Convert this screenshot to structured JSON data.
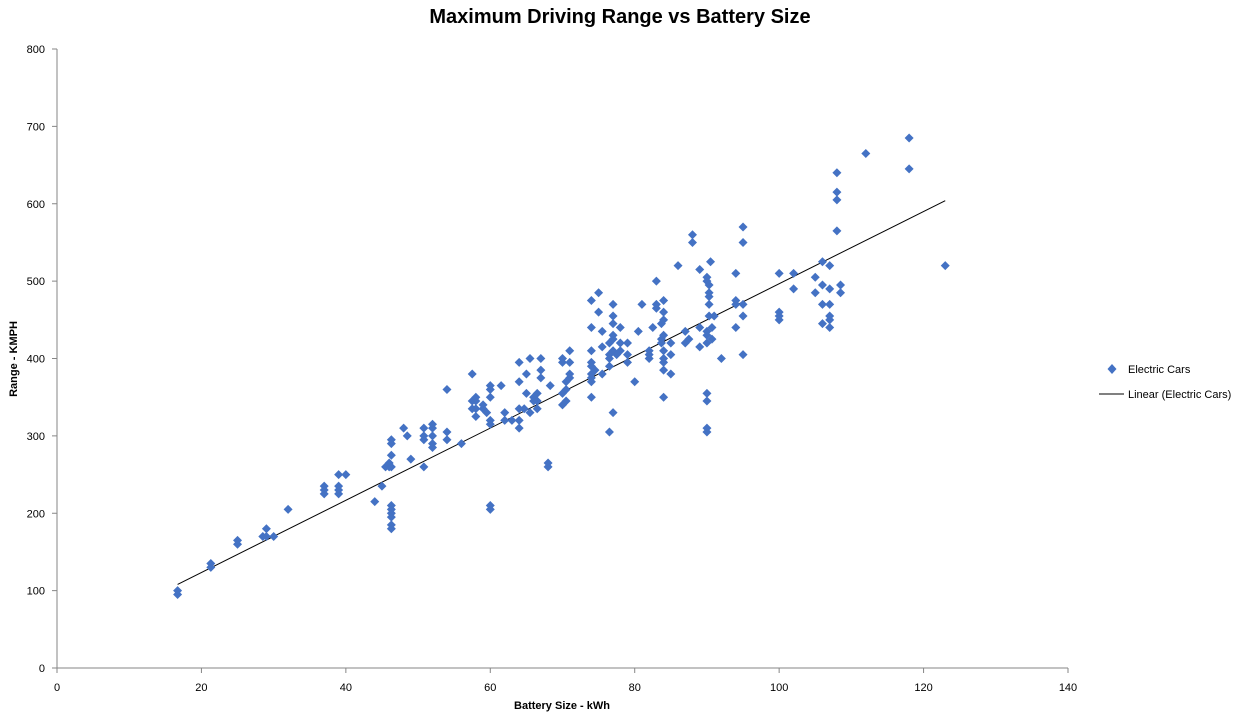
{
  "chart_data": {
    "type": "scatter",
    "title": "Maximum Driving Range vs Battery Size",
    "xlabel": "Battery Size - kWh",
    "ylabel": "Range - KMPH",
    "xlim": [
      0,
      140
    ],
    "ylim": [
      0,
      800
    ],
    "xticks": [
      0,
      20,
      40,
      60,
      80,
      100,
      120,
      140
    ],
    "yticks": [
      0,
      100,
      200,
      300,
      400,
      500,
      600,
      700,
      800
    ],
    "grid": false,
    "legend_position": "right",
    "series": [
      {
        "name": "Electric Cars",
        "marker": "diamond",
        "color": "#4472C4",
        "points": [
          [
            16.7,
            95
          ],
          [
            16.7,
            100
          ],
          [
            21.3,
            130
          ],
          [
            21.3,
            135
          ],
          [
            25,
            160
          ],
          [
            25,
            165
          ],
          [
            28.5,
            170
          ],
          [
            29,
            170
          ],
          [
            29,
            180
          ],
          [
            30,
            170
          ],
          [
            32,
            205
          ],
          [
            37,
            225
          ],
          [
            37,
            230
          ],
          [
            37,
            235
          ],
          [
            39,
            225
          ],
          [
            39,
            230
          ],
          [
            39,
            235
          ],
          [
            39,
            250
          ],
          [
            40,
            250
          ],
          [
            44,
            215
          ],
          [
            45,
            235
          ],
          [
            45.5,
            260
          ],
          [
            46,
            260
          ],
          [
            46,
            265
          ],
          [
            46.3,
            180
          ],
          [
            46.3,
            185
          ],
          [
            46.3,
            195
          ],
          [
            46.3,
            200
          ],
          [
            46.3,
            205
          ],
          [
            46.3,
            210
          ],
          [
            46.3,
            260
          ],
          [
            46.3,
            275
          ],
          [
            46.3,
            290
          ],
          [
            46.3,
            295
          ],
          [
            48,
            310
          ],
          [
            48.5,
            300
          ],
          [
            49,
            270
          ],
          [
            50.8,
            260
          ],
          [
            50.8,
            295
          ],
          [
            50.8,
            300
          ],
          [
            50.8,
            310
          ],
          [
            52,
            285
          ],
          [
            52,
            290
          ],
          [
            52,
            300
          ],
          [
            52,
            310
          ],
          [
            52,
            315
          ],
          [
            54,
            295
          ],
          [
            54,
            305
          ],
          [
            54,
            360
          ],
          [
            56,
            290
          ],
          [
            57.5,
            335
          ],
          [
            57.5,
            345
          ],
          [
            57.5,
            380
          ],
          [
            58,
            335
          ],
          [
            58,
            345
          ],
          [
            58,
            350
          ],
          [
            58,
            325
          ],
          [
            59,
            335
          ],
          [
            59,
            340
          ],
          [
            59.5,
            330
          ],
          [
            60,
            205
          ],
          [
            60,
            210
          ],
          [
            60,
            315
          ],
          [
            60,
            320
          ],
          [
            60,
            350
          ],
          [
            60,
            360
          ],
          [
            60,
            365
          ],
          [
            61.5,
            365
          ],
          [
            62,
            320
          ],
          [
            62,
            330
          ],
          [
            63,
            320
          ],
          [
            64,
            310
          ],
          [
            64,
            320
          ],
          [
            64,
            335
          ],
          [
            64,
            370
          ],
          [
            64,
            395
          ],
          [
            64.7,
            335
          ],
          [
            65,
            355
          ],
          [
            65,
            380
          ],
          [
            65.5,
            330
          ],
          [
            65.5,
            400
          ],
          [
            66,
            345
          ],
          [
            66,
            350
          ],
          [
            66.5,
            335
          ],
          [
            66.5,
            345
          ],
          [
            66.5,
            355
          ],
          [
            67,
            375
          ],
          [
            67,
            385
          ],
          [
            67,
            400
          ],
          [
            68,
            260
          ],
          [
            68,
            265
          ],
          [
            68.3,
            365
          ],
          [
            70,
            340
          ],
          [
            70,
            355
          ],
          [
            70,
            395
          ],
          [
            70,
            400
          ],
          [
            70.5,
            345
          ],
          [
            70.5,
            360
          ],
          [
            70.5,
            370
          ],
          [
            71,
            375
          ],
          [
            71,
            380
          ],
          [
            71,
            395
          ],
          [
            71,
            410
          ],
          [
            74,
            370
          ],
          [
            74,
            375
          ],
          [
            74,
            380
          ],
          [
            74,
            390
          ],
          [
            74,
            395
          ],
          [
            74,
            410
          ],
          [
            74,
            350
          ],
          [
            74,
            440
          ],
          [
            74,
            475
          ],
          [
            74.5,
            385
          ],
          [
            75,
            460
          ],
          [
            75,
            485
          ],
          [
            75.5,
            380
          ],
          [
            75.5,
            415
          ],
          [
            75.5,
            435
          ],
          [
            76.5,
            305
          ],
          [
            76.5,
            390
          ],
          [
            76.5,
            400
          ],
          [
            76.5,
            405
          ],
          [
            76.5,
            420
          ],
          [
            77,
            330
          ],
          [
            77,
            410
          ],
          [
            77,
            425
          ],
          [
            77,
            430
          ],
          [
            77,
            445
          ],
          [
            77,
            455
          ],
          [
            77,
            470
          ],
          [
            77.5,
            405
          ],
          [
            78,
            410
          ],
          [
            78,
            420
          ],
          [
            78,
            440
          ],
          [
            79,
            395
          ],
          [
            79,
            405
          ],
          [
            79,
            420
          ],
          [
            80,
            370
          ],
          [
            80.5,
            435
          ],
          [
            81,
            470
          ],
          [
            82,
            400
          ],
          [
            82,
            405
          ],
          [
            82,
            410
          ],
          [
            82.5,
            440
          ],
          [
            83,
            465
          ],
          [
            83,
            470
          ],
          [
            83,
            500
          ],
          [
            83.7,
            420
          ],
          [
            83.7,
            425
          ],
          [
            83.7,
            445
          ],
          [
            84,
            350
          ],
          [
            84,
            385
          ],
          [
            84,
            395
          ],
          [
            84,
            400
          ],
          [
            84,
            410
          ],
          [
            84,
            430
          ],
          [
            84,
            450
          ],
          [
            84,
            460
          ],
          [
            84,
            475
          ],
          [
            85,
            380
          ],
          [
            85,
            405
          ],
          [
            85,
            420
          ],
          [
            86,
            520
          ],
          [
            87,
            420
          ],
          [
            87,
            435
          ],
          [
            87.5,
            425
          ],
          [
            88,
            550
          ],
          [
            88,
            560
          ],
          [
            89,
            415
          ],
          [
            89,
            440
          ],
          [
            89,
            515
          ],
          [
            90,
            305
          ],
          [
            90,
            310
          ],
          [
            90,
            345
          ],
          [
            90,
            355
          ],
          [
            90,
            420
          ],
          [
            90,
            430
          ],
          [
            90,
            435
          ],
          [
            90,
            500
          ],
          [
            90,
            505
          ],
          [
            90.3,
            455
          ],
          [
            90.3,
            470
          ],
          [
            90.3,
            480
          ],
          [
            90.3,
            485
          ],
          [
            90.3,
            495
          ],
          [
            90.5,
            525
          ],
          [
            90.7,
            425
          ],
          [
            90.7,
            440
          ],
          [
            91,
            455
          ],
          [
            92,
            400
          ],
          [
            94,
            440
          ],
          [
            94,
            470
          ],
          [
            94,
            475
          ],
          [
            94,
            510
          ],
          [
            95,
            405
          ],
          [
            95,
            455
          ],
          [
            95,
            470
          ],
          [
            95,
            550
          ],
          [
            95,
            570
          ],
          [
            100,
            450
          ],
          [
            100,
            455
          ],
          [
            100,
            460
          ],
          [
            100,
            510
          ],
          [
            102,
            490
          ],
          [
            102,
            510
          ],
          [
            105,
            485
          ],
          [
            105,
            505
          ],
          [
            106,
            445
          ],
          [
            106,
            470
          ],
          [
            106,
            495
          ],
          [
            106,
            525
          ],
          [
            107,
            440
          ],
          [
            107,
            450
          ],
          [
            107,
            455
          ],
          [
            107,
            470
          ],
          [
            107,
            490
          ],
          [
            107,
            520
          ],
          [
            108,
            565
          ],
          [
            108,
            605
          ],
          [
            108,
            615
          ],
          [
            108,
            640
          ],
          [
            108.5,
            485
          ],
          [
            108.5,
            495
          ],
          [
            112,
            665
          ],
          [
            118,
            645
          ],
          [
            118,
            685
          ],
          [
            123,
            520
          ]
        ]
      }
    ],
    "trendline": {
      "name": "Linear (Electric Cars)",
      "type": "linear",
      "x_range": [
        16.7,
        123
      ],
      "y_values": [
        108,
        604
      ],
      "color": "#000000"
    }
  }
}
